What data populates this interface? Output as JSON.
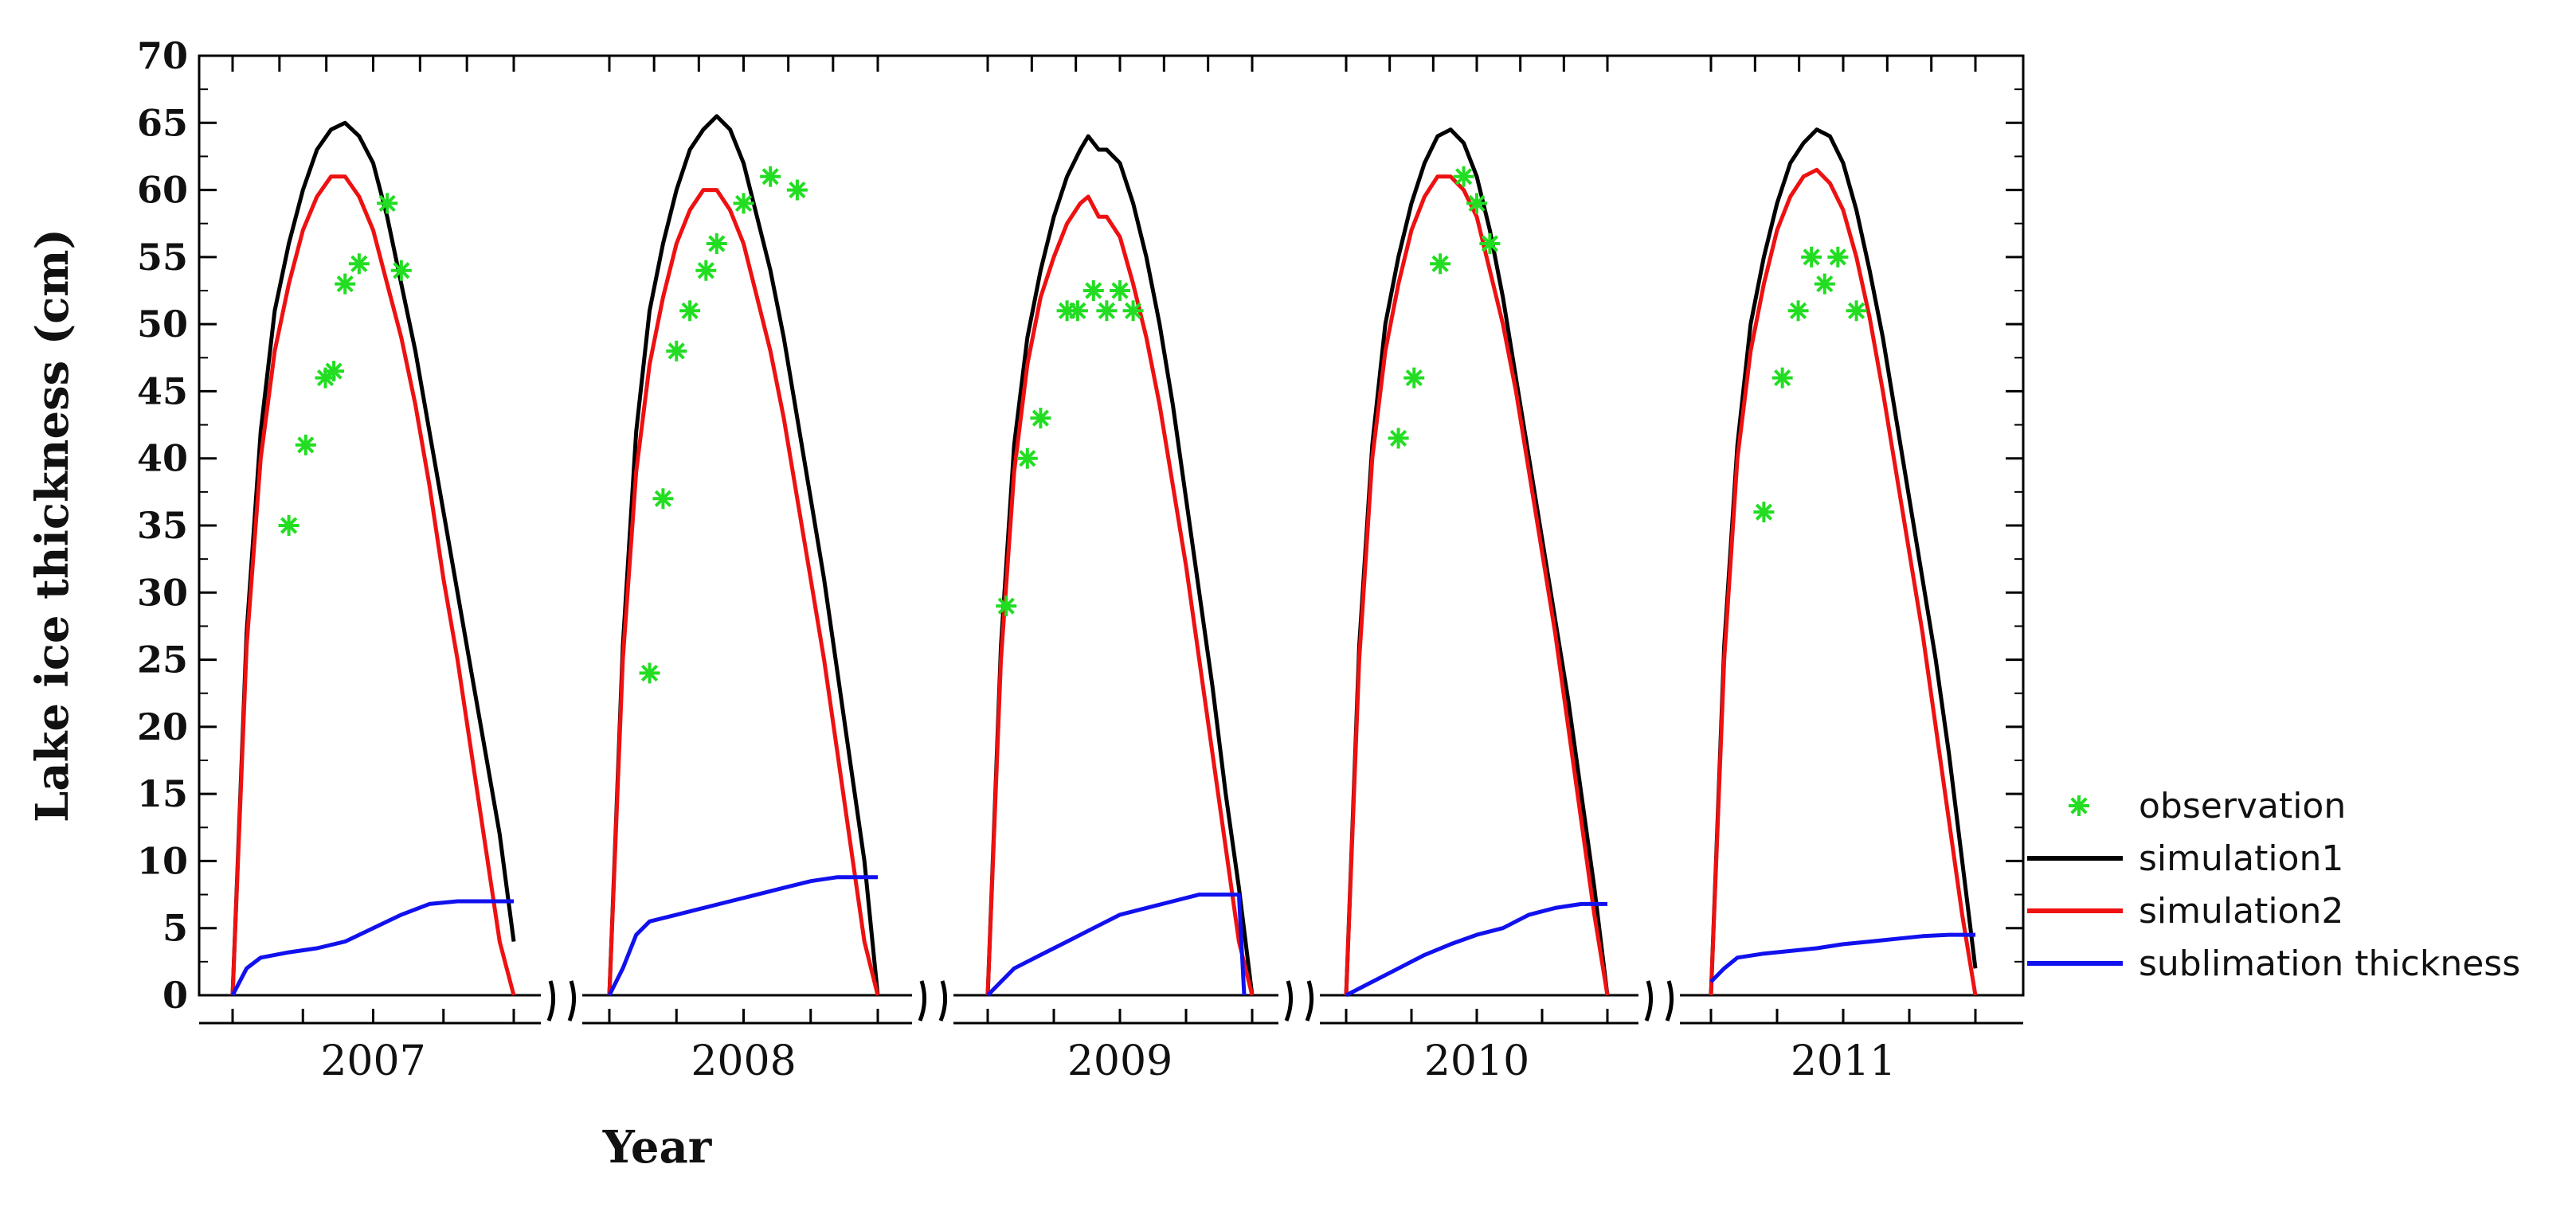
{
  "chart_data": {
    "type": "line",
    "xlabel": "Year",
    "ylabel": "Lake ice thickness (cm)",
    "ylim": [
      0,
      70
    ],
    "yticks": [
      0,
      5,
      10,
      15,
      20,
      25,
      30,
      35,
      40,
      45,
      50,
      55,
      60,
      65,
      70
    ],
    "x_unit": "fraction of each year's ice-covered season (0 = freeze-up, 1 = break-up)",
    "years": [
      "2007",
      "2008",
      "2009",
      "2010",
      "2011"
    ],
    "legend": {
      "position": "right",
      "entries": [
        {
          "key": "observation",
          "label": "observation",
          "color": "#22dd22",
          "marker": "asterisk"
        },
        {
          "key": "simulation1",
          "label": "simulation1",
          "color": "#000000",
          "marker": "line"
        },
        {
          "key": "simulation2",
          "label": "simulation2",
          "color": "#ee1111",
          "marker": "line"
        },
        {
          "key": "sublimation",
          "label": "sublimation thickness",
          "color": "#1111ee",
          "marker": "line"
        }
      ]
    },
    "seasons": [
      {
        "year": "2007",
        "simulation1": [
          [
            0,
            0
          ],
          [
            0.05,
            27
          ],
          [
            0.1,
            42
          ],
          [
            0.15,
            51
          ],
          [
            0.2,
            56
          ],
          [
            0.25,
            60
          ],
          [
            0.3,
            63
          ],
          [
            0.35,
            64.5
          ],
          [
            0.4,
            65
          ],
          [
            0.45,
            64
          ],
          [
            0.5,
            62
          ],
          [
            0.55,
            58
          ],
          [
            0.6,
            53
          ],
          [
            0.65,
            48
          ],
          [
            0.7,
            42
          ],
          [
            0.75,
            36
          ],
          [
            0.8,
            30
          ],
          [
            0.85,
            24
          ],
          [
            0.9,
            18
          ],
          [
            0.95,
            12
          ],
          [
            1,
            4
          ]
        ],
        "simulation2": [
          [
            0,
            0
          ],
          [
            0.05,
            26
          ],
          [
            0.1,
            40
          ],
          [
            0.15,
            48
          ],
          [
            0.2,
            53
          ],
          [
            0.25,
            57
          ],
          [
            0.3,
            59.5
          ],
          [
            0.35,
            61
          ],
          [
            0.4,
            61
          ],
          [
            0.45,
            59.5
          ],
          [
            0.5,
            57
          ],
          [
            0.55,
            53
          ],
          [
            0.6,
            49
          ],
          [
            0.65,
            44
          ],
          [
            0.7,
            38
          ],
          [
            0.75,
            31
          ],
          [
            0.8,
            25
          ],
          [
            0.85,
            18
          ],
          [
            0.9,
            11
          ],
          [
            0.95,
            4
          ],
          [
            1,
            0
          ]
        ],
        "sublimation": [
          [
            0,
            0
          ],
          [
            0.05,
            2
          ],
          [
            0.1,
            2.8
          ],
          [
            0.2,
            3.2
          ],
          [
            0.3,
            3.5
          ],
          [
            0.4,
            4
          ],
          [
            0.5,
            5
          ],
          [
            0.6,
            6
          ],
          [
            0.7,
            6.8
          ],
          [
            0.8,
            7
          ],
          [
            1,
            7
          ]
        ],
        "observation": [
          [
            0.2,
            35
          ],
          [
            0.26,
            41
          ],
          [
            0.33,
            46
          ],
          [
            0.36,
            46.5
          ],
          [
            0.4,
            53
          ],
          [
            0.45,
            54.5
          ],
          [
            0.55,
            59
          ],
          [
            0.6,
            54
          ]
        ]
      },
      {
        "year": "2008",
        "simulation1": [
          [
            0,
            0
          ],
          [
            0.05,
            26
          ],
          [
            0.1,
            42
          ],
          [
            0.15,
            51
          ],
          [
            0.2,
            56
          ],
          [
            0.25,
            60
          ],
          [
            0.3,
            63
          ],
          [
            0.35,
            64.5
          ],
          [
            0.4,
            65.5
          ],
          [
            0.45,
            64.5
          ],
          [
            0.5,
            62
          ],
          [
            0.55,
            58
          ],
          [
            0.6,
            54
          ],
          [
            0.65,
            49
          ],
          [
            0.7,
            43
          ],
          [
            0.75,
            37
          ],
          [
            0.8,
            31
          ],
          [
            0.85,
            24
          ],
          [
            0.9,
            17
          ],
          [
            0.95,
            10
          ],
          [
            1,
            0
          ]
        ],
        "simulation2": [
          [
            0,
            0
          ],
          [
            0.05,
            25
          ],
          [
            0.1,
            39
          ],
          [
            0.15,
            47
          ],
          [
            0.2,
            52
          ],
          [
            0.25,
            56
          ],
          [
            0.3,
            58.5
          ],
          [
            0.35,
            60
          ],
          [
            0.4,
            60
          ],
          [
            0.45,
            58.5
          ],
          [
            0.5,
            56
          ],
          [
            0.55,
            52
          ],
          [
            0.6,
            48
          ],
          [
            0.65,
            43
          ],
          [
            0.7,
            37
          ],
          [
            0.75,
            31
          ],
          [
            0.8,
            25
          ],
          [
            0.85,
            18
          ],
          [
            0.9,
            11
          ],
          [
            0.95,
            4
          ],
          [
            1,
            0
          ]
        ],
        "sublimation": [
          [
            0,
            0
          ],
          [
            0.05,
            2
          ],
          [
            0.1,
            4.5
          ],
          [
            0.15,
            5.5
          ],
          [
            0.25,
            6
          ],
          [
            0.35,
            6.5
          ],
          [
            0.45,
            7
          ],
          [
            0.55,
            7.5
          ],
          [
            0.65,
            8
          ],
          [
            0.75,
            8.5
          ],
          [
            0.85,
            8.8
          ],
          [
            1,
            8.8
          ]
        ],
        "observation": [
          [
            0.15,
            24
          ],
          [
            0.2,
            37
          ],
          [
            0.25,
            48
          ],
          [
            0.3,
            51
          ],
          [
            0.36,
            54
          ],
          [
            0.4,
            56
          ],
          [
            0.5,
            59
          ],
          [
            0.6,
            61
          ],
          [
            0.7,
            60
          ]
        ]
      },
      {
        "year": "2009",
        "simulation1": [
          [
            0,
            0
          ],
          [
            0.05,
            26
          ],
          [
            0.1,
            41
          ],
          [
            0.15,
            49
          ],
          [
            0.2,
            54
          ],
          [
            0.25,
            58
          ],
          [
            0.3,
            61
          ],
          [
            0.35,
            63
          ],
          [
            0.38,
            64
          ],
          [
            0.42,
            63
          ],
          [
            0.45,
            63
          ],
          [
            0.5,
            62
          ],
          [
            0.55,
            59
          ],
          [
            0.6,
            55
          ],
          [
            0.65,
            50
          ],
          [
            0.7,
            44
          ],
          [
            0.75,
            37
          ],
          [
            0.8,
            30
          ],
          [
            0.85,
            23
          ],
          [
            0.9,
            15
          ],
          [
            0.95,
            8
          ],
          [
            1,
            0
          ]
        ],
        "simulation2": [
          [
            0,
            0
          ],
          [
            0.05,
            25
          ],
          [
            0.1,
            39
          ],
          [
            0.15,
            47
          ],
          [
            0.2,
            52
          ],
          [
            0.25,
            55
          ],
          [
            0.3,
            57.5
          ],
          [
            0.35,
            59
          ],
          [
            0.38,
            59.5
          ],
          [
            0.42,
            58
          ],
          [
            0.45,
            58
          ],
          [
            0.5,
            56.5
          ],
          [
            0.55,
            53
          ],
          [
            0.6,
            49
          ],
          [
            0.65,
            44
          ],
          [
            0.7,
            38
          ],
          [
            0.75,
            32
          ],
          [
            0.8,
            25
          ],
          [
            0.85,
            18
          ],
          [
            0.9,
            11
          ],
          [
            0.95,
            4
          ],
          [
            1,
            0
          ]
        ],
        "sublimation": [
          [
            0,
            0
          ],
          [
            0.05,
            1
          ],
          [
            0.1,
            2
          ],
          [
            0.2,
            3
          ],
          [
            0.3,
            4
          ],
          [
            0.4,
            5
          ],
          [
            0.5,
            6
          ],
          [
            0.6,
            6.5
          ],
          [
            0.7,
            7
          ],
          [
            0.8,
            7.5
          ],
          [
            0.9,
            7.5
          ],
          [
            0.95,
            7.5
          ],
          [
            0.97,
            0
          ]
        ],
        "observation": [
          [
            0.07,
            29
          ],
          [
            0.15,
            40
          ],
          [
            0.2,
            43
          ],
          [
            0.3,
            51
          ],
          [
            0.34,
            51
          ],
          [
            0.4,
            52.5
          ],
          [
            0.45,
            51
          ],
          [
            0.5,
            52.5
          ],
          [
            0.55,
            51
          ]
        ]
      },
      {
        "year": "2010",
        "simulation1": [
          [
            0,
            0
          ],
          [
            0.05,
            26
          ],
          [
            0.1,
            41
          ],
          [
            0.15,
            50
          ],
          [
            0.2,
            55
          ],
          [
            0.25,
            59
          ],
          [
            0.3,
            62
          ],
          [
            0.35,
            64
          ],
          [
            0.4,
            64.5
          ],
          [
            0.45,
            63.5
          ],
          [
            0.5,
            61
          ],
          [
            0.55,
            57
          ],
          [
            0.6,
            52
          ],
          [
            0.65,
            46
          ],
          [
            0.7,
            40
          ],
          [
            0.75,
            34
          ],
          [
            0.8,
            28
          ],
          [
            0.85,
            22
          ],
          [
            0.9,
            15
          ],
          [
            0.95,
            8
          ],
          [
            1,
            0
          ]
        ],
        "simulation2": [
          [
            0,
            0
          ],
          [
            0.05,
            25
          ],
          [
            0.1,
            40
          ],
          [
            0.15,
            48
          ],
          [
            0.2,
            53
          ],
          [
            0.25,
            57
          ],
          [
            0.3,
            59.5
          ],
          [
            0.35,
            61
          ],
          [
            0.4,
            61
          ],
          [
            0.45,
            60
          ],
          [
            0.5,
            58
          ],
          [
            0.55,
            54
          ],
          [
            0.6,
            50
          ],
          [
            0.65,
            45
          ],
          [
            0.7,
            39
          ],
          [
            0.75,
            33
          ],
          [
            0.8,
            27
          ],
          [
            0.85,
            20
          ],
          [
            0.9,
            13
          ],
          [
            0.95,
            6
          ],
          [
            1,
            0
          ]
        ],
        "sublimation": [
          [
            0,
            0
          ],
          [
            0.1,
            1
          ],
          [
            0.2,
            2
          ],
          [
            0.3,
            3
          ],
          [
            0.4,
            3.8
          ],
          [
            0.5,
            4.5
          ],
          [
            0.6,
            5
          ],
          [
            0.7,
            6
          ],
          [
            0.8,
            6.5
          ],
          [
            0.9,
            6.8
          ],
          [
            1,
            6.8
          ]
        ],
        "observation": [
          [
            0.2,
            41.5
          ],
          [
            0.26,
            46
          ],
          [
            0.36,
            54.5
          ],
          [
            0.45,
            61
          ],
          [
            0.5,
            59
          ],
          [
            0.55,
            56
          ]
        ]
      },
      {
        "year": "2011",
        "simulation1": [
          [
            0,
            0
          ],
          [
            0.05,
            26
          ],
          [
            0.1,
            41
          ],
          [
            0.15,
            50
          ],
          [
            0.2,
            55
          ],
          [
            0.25,
            59
          ],
          [
            0.3,
            62
          ],
          [
            0.35,
            63.5
          ],
          [
            0.4,
            64.5
          ],
          [
            0.45,
            64
          ],
          [
            0.5,
            62
          ],
          [
            0.55,
            58.5
          ],
          [
            0.6,
            54
          ],
          [
            0.65,
            49
          ],
          [
            0.7,
            43
          ],
          [
            0.75,
            37
          ],
          [
            0.8,
            31
          ],
          [
            0.85,
            25
          ],
          [
            0.9,
            18
          ],
          [
            0.95,
            10
          ],
          [
            1,
            2
          ]
        ],
        "simulation2": [
          [
            0,
            0
          ],
          [
            0.05,
            25
          ],
          [
            0.1,
            40
          ],
          [
            0.15,
            48
          ],
          [
            0.2,
            53
          ],
          [
            0.25,
            57
          ],
          [
            0.3,
            59.5
          ],
          [
            0.35,
            61
          ],
          [
            0.4,
            61.5
          ],
          [
            0.45,
            60.5
          ],
          [
            0.5,
            58.5
          ],
          [
            0.55,
            55
          ],
          [
            0.6,
            50.5
          ],
          [
            0.65,
            45
          ],
          [
            0.7,
            39
          ],
          [
            0.75,
            33
          ],
          [
            0.8,
            27
          ],
          [
            0.85,
            20
          ],
          [
            0.9,
            13
          ],
          [
            0.95,
            6
          ],
          [
            1,
            0
          ]
        ],
        "sublimation": [
          [
            0,
            1
          ],
          [
            0.05,
            2
          ],
          [
            0.1,
            2.8
          ],
          [
            0.2,
            3.1
          ],
          [
            0.3,
            3.3
          ],
          [
            0.4,
            3.5
          ],
          [
            0.5,
            3.8
          ],
          [
            0.6,
            4
          ],
          [
            0.7,
            4.2
          ],
          [
            0.8,
            4.4
          ],
          [
            0.9,
            4.5
          ],
          [
            1,
            4.5
          ]
        ],
        "observation": [
          [
            0.2,
            36
          ],
          [
            0.27,
            46
          ],
          [
            0.33,
            51
          ],
          [
            0.38,
            55
          ],
          [
            0.43,
            53
          ],
          [
            0.48,
            55
          ],
          [
            0.55,
            51
          ]
        ]
      }
    ]
  }
}
